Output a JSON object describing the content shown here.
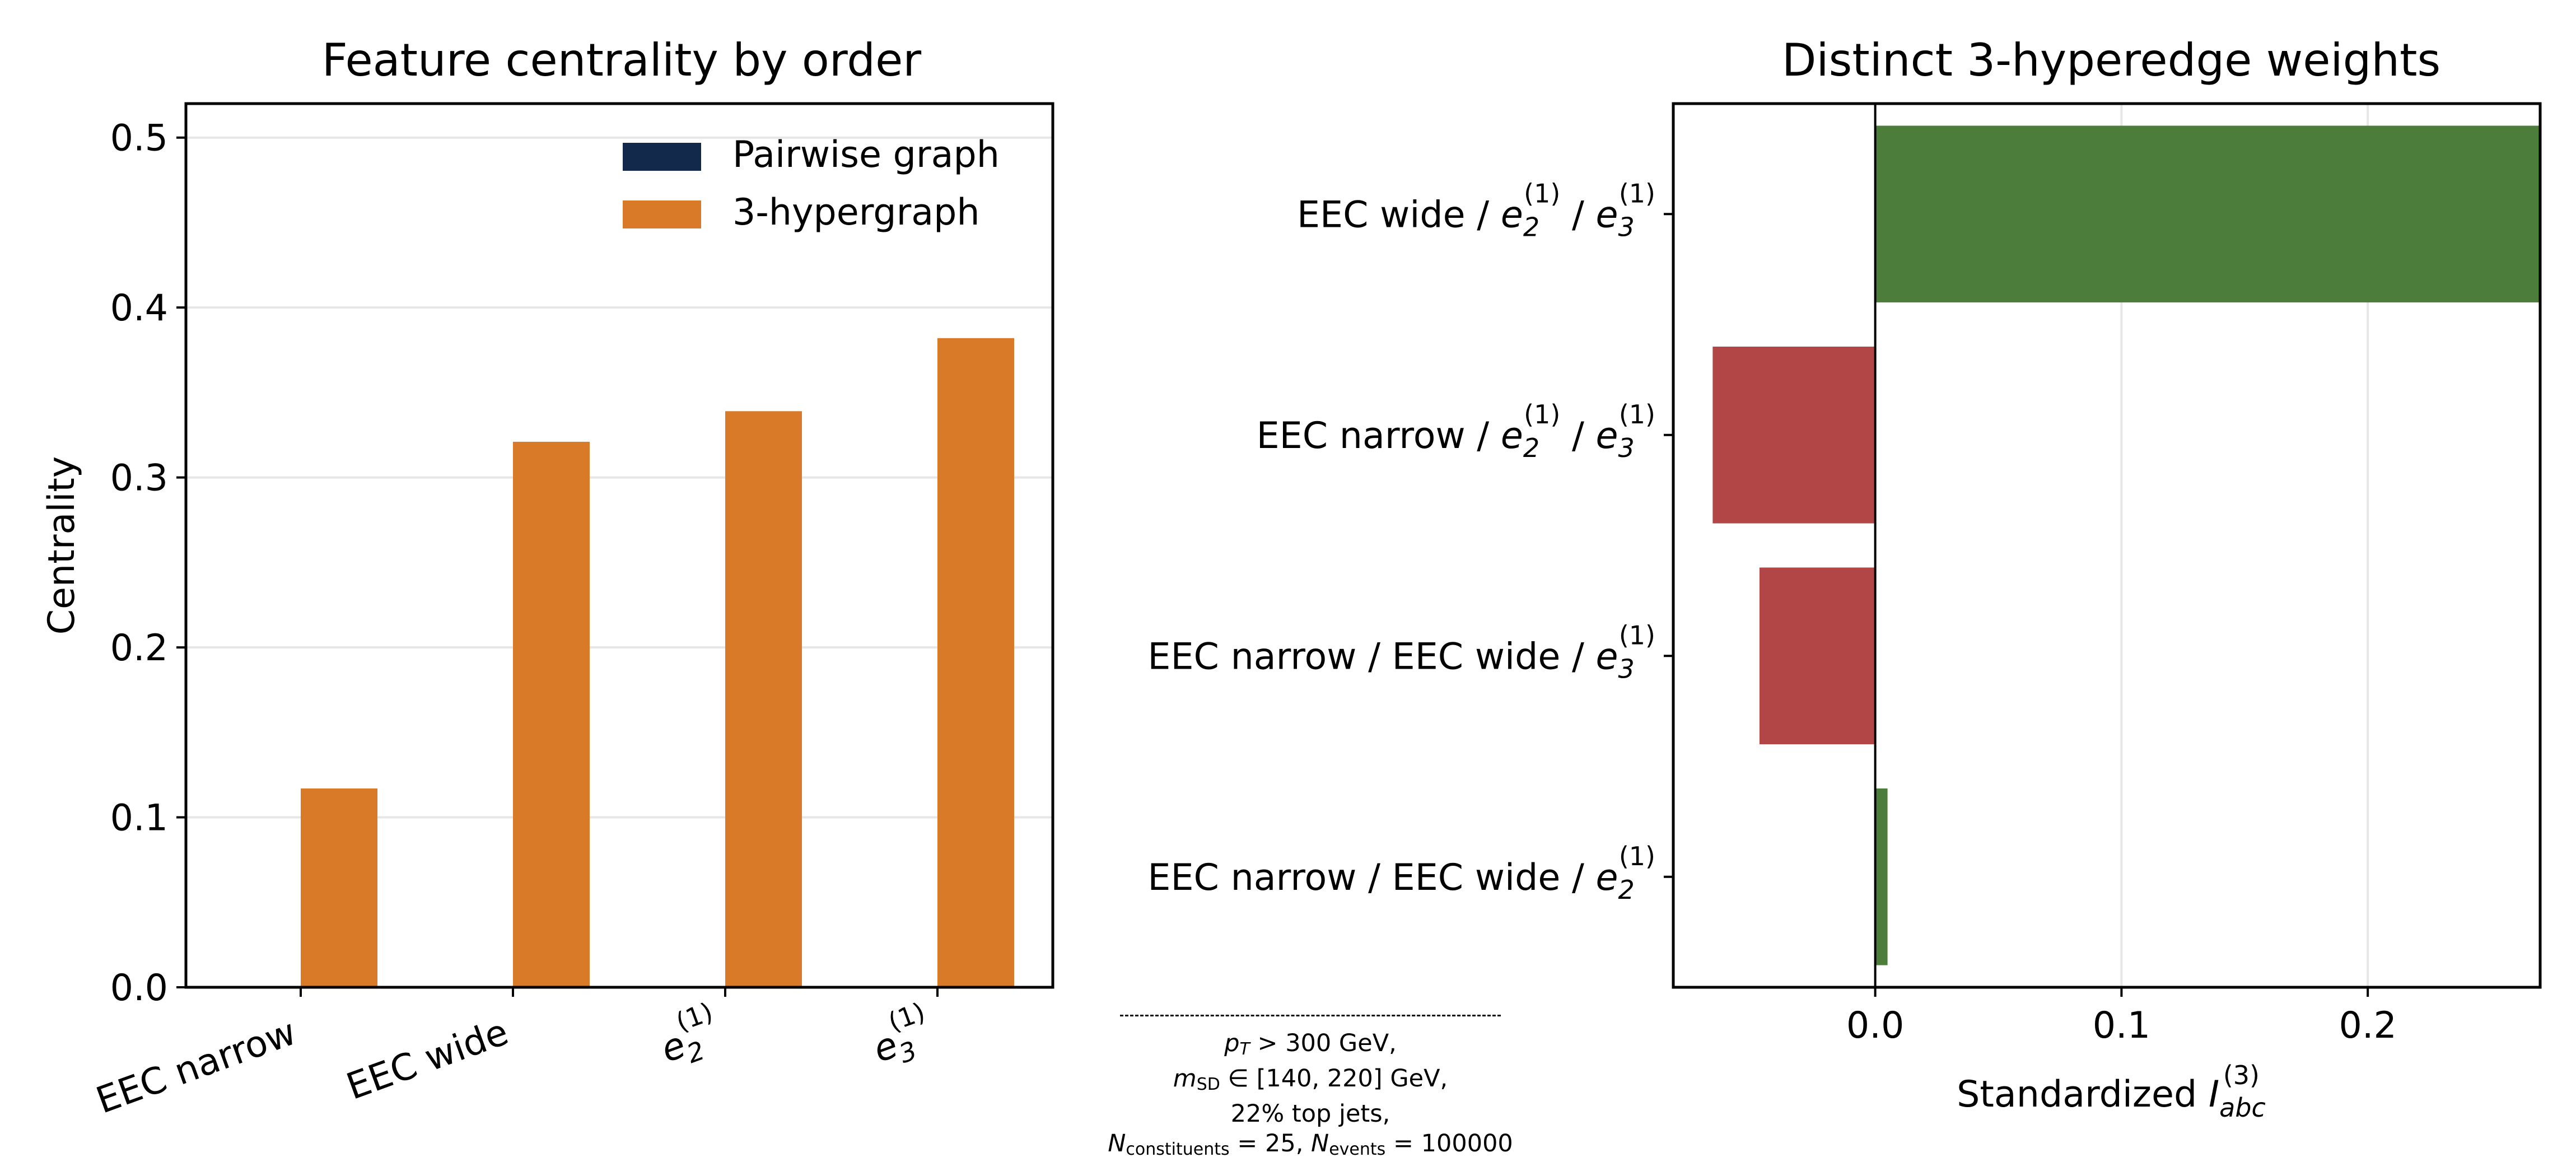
{
  "colors": {
    "pairwise": "#13294b",
    "hyper": "#d97a28",
    "positive": "#4d7d3b",
    "negative": "#b24646",
    "grid": "#e6e6e6"
  },
  "chart_data": [
    {
      "type": "bar",
      "title": "Feature centrality by order",
      "xlabel": "",
      "ylabel": "Centrality",
      "ylim": [
        0,
        0.52
      ],
      "yticks": [
        "0.0",
        "0.1",
        "0.2",
        "0.3",
        "0.4",
        "0.5"
      ],
      "ytick_values": [
        0,
        0.1,
        0.2,
        0.3,
        0.4,
        0.5
      ],
      "categories": [
        {
          "label": "EEC narrow",
          "math": false
        },
        {
          "label": "EEC wide",
          "math": false
        },
        {
          "label": "e",
          "math": true,
          "sub": "2",
          "sup": "(1)"
        },
        {
          "label": "e",
          "math": true,
          "sub": "3",
          "sup": "(1)"
        }
      ],
      "series": [
        {
          "name": "Pairwise graph",
          "values": [
            0,
            0,
            0,
            0
          ],
          "color": "#13294b"
        },
        {
          "name": "3-hypergraph",
          "values": [
            0.117,
            0.321,
            0.339,
            0.382
          ],
          "color": "#d97a28"
        }
      ],
      "grid": "y",
      "legend": "top-right"
    },
    {
      "type": "bar",
      "orientation": "horizontal",
      "title": "Distinct 3-hyperedge weights",
      "xlabel": {
        "prefix": "Standardized ",
        "var": "I",
        "sub": "abc",
        "sup": "(3)"
      },
      "ylabel": "",
      "xlim": [
        -0.082,
        0.27
      ],
      "xticks": [
        "0.0",
        "0.1",
        "0.2"
      ],
      "xtick_values": [
        0,
        0.1,
        0.2
      ],
      "grid": "x",
      "categories": [
        {
          "parts": [
            "EEC wide / ",
            "e|2|(1)",
            " / ",
            "e|3|(1)"
          ]
        },
        {
          "parts": [
            "EEC narrow / ",
            "e|2|(1)",
            " / ",
            "e|3|(1)"
          ]
        },
        {
          "parts": [
            "EEC narrow / EEC wide / ",
            "e|3|(1)"
          ]
        },
        {
          "parts": [
            "EEC narrow / EEC wide / ",
            "e|2|(1)"
          ]
        }
      ],
      "values": [
        0.27,
        -0.066,
        -0.047,
        0.005
      ]
    }
  ],
  "annotation": {
    "line1": {
      "var": "p",
      "sub": "T",
      "text": " > 300 GeV,"
    },
    "line2": {
      "var": "m",
      "sub": "SD",
      "text": " ∈ [140, 220] GeV,"
    },
    "line3": "22% top jets,",
    "line4": {
      "var1": "N",
      "sub1": "constituents",
      "mid": " = 25, ",
      "var2": "N",
      "sub2": "events",
      "end": " = 100000"
    }
  }
}
